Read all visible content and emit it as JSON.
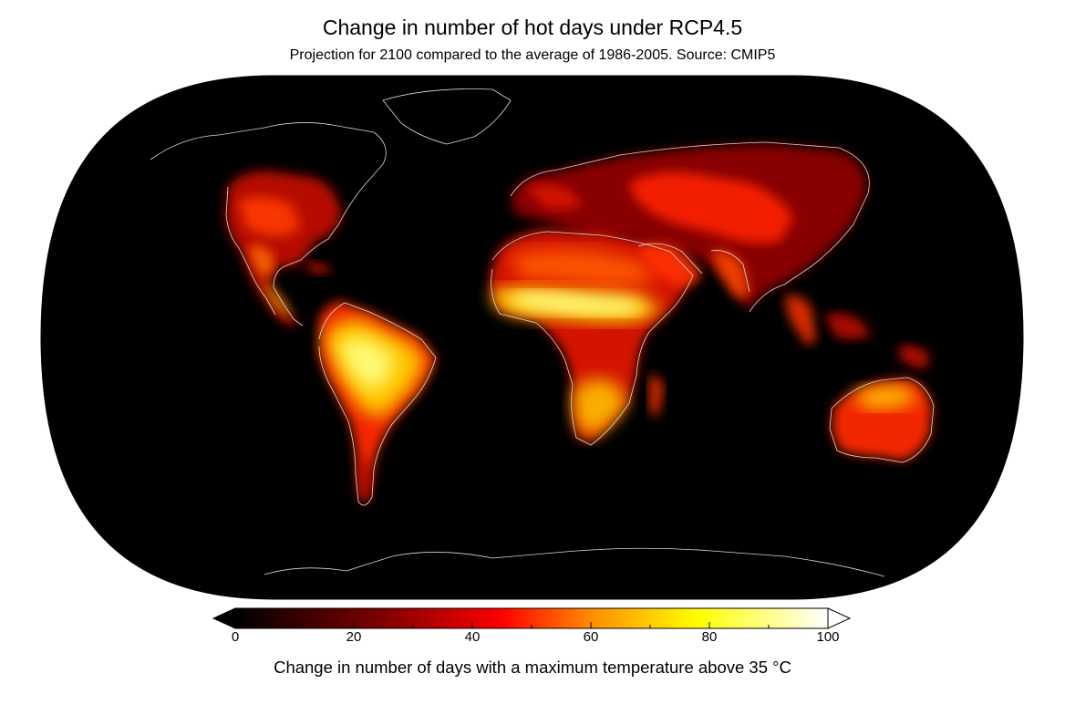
{
  "map": {
    "title": "Change in number of hot days under RCP4.5",
    "subtitle": "Projection for 2100 compared to the average of 1986-2005. Source: CMIP5",
    "projection": "Robinson",
    "ocean_color": "#000000",
    "coastline_color": "#cfcfcf"
  },
  "colorbar": {
    "label": "Change in number of days with a maximum temperature above 35 °C",
    "colormap": "afmhot",
    "min": 0,
    "max": 100,
    "extend_low_color": "#000000",
    "extend_high_color": "#ffffff",
    "ticks": [
      {
        "value": 0,
        "label": "0"
      },
      {
        "value": 20,
        "label": "20"
      },
      {
        "value": 40,
        "label": "40"
      },
      {
        "value": 60,
        "label": "60"
      },
      {
        "value": 80,
        "label": "80"
      },
      {
        "value": 100,
        "label": "100"
      }
    ],
    "stops": [
      {
        "value": 0,
        "color": "#000000"
      },
      {
        "value": 25,
        "color": "#800000"
      },
      {
        "value": 45,
        "color": "#ff0000"
      },
      {
        "value": 60,
        "color": "#ff8c00"
      },
      {
        "value": 78,
        "color": "#ffff00"
      },
      {
        "value": 100,
        "color": "#ffffff"
      }
    ]
  }
}
